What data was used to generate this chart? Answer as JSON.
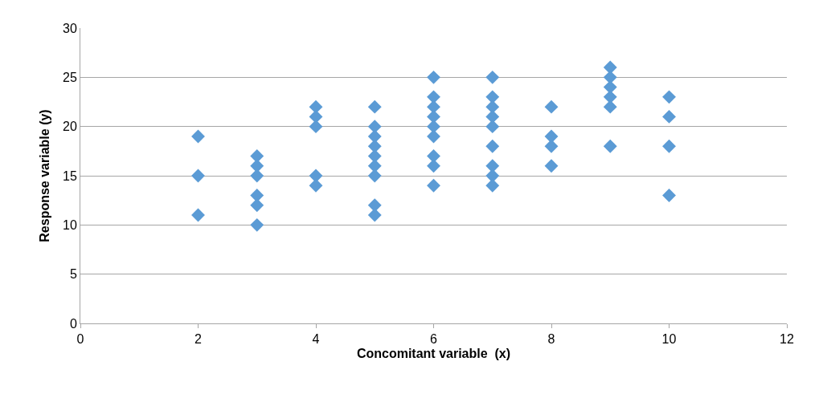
{
  "chart_data": {
    "type": "scatter",
    "xlabel": "Concomitant variable  (x)",
    "ylabel": "Response variable (y)",
    "series": [
      {
        "color": "#5b9bd5",
        "x": [
          2,
          2,
          2,
          3,
          3,
          3,
          3,
          3,
          3,
          4,
          4,
          4,
          4,
          4,
          5,
          5,
          5,
          5,
          5,
          5,
          5,
          5,
          5,
          6,
          6,
          6,
          6,
          6,
          6,
          6,
          6,
          6,
          7,
          7,
          7,
          7,
          7,
          7,
          7,
          7,
          7,
          8,
          8,
          8,
          8,
          9,
          9,
          9,
          9,
          9,
          9,
          10,
          10,
          10,
          10
        ],
        "values": [
          19,
          15,
          11,
          17,
          16,
          15,
          13,
          12,
          10,
          22,
          21,
          20,
          15,
          14,
          22,
          20,
          19,
          18,
          17,
          16,
          15,
          12,
          11,
          25,
          23,
          22,
          21,
          20,
          19,
          17,
          16,
          14,
          25,
          23,
          22,
          21,
          20,
          18,
          16,
          15,
          14,
          22,
          19,
          18,
          16,
          26,
          25,
          24,
          23,
          22,
          18,
          23,
          21,
          18,
          13
        ]
      }
    ],
    "xlim": [
      0,
      12
    ],
    "xticks": [
      0,
      2,
      4,
      6,
      8,
      10,
      12
    ],
    "ylim": [
      0,
      30
    ],
    "yticks": [
      0,
      5,
      10,
      15,
      20,
      25,
      30
    ],
    "grid": "y",
    "legend": false,
    "marker": "diamond"
  }
}
